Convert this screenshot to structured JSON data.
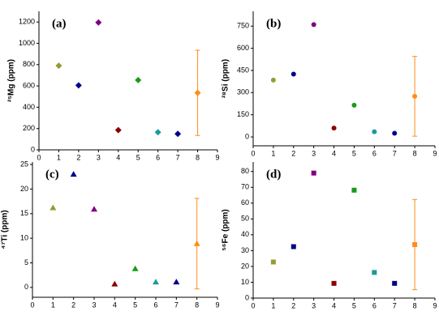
{
  "chart_data": [
    {
      "type": "scatter",
      "title": "(a)",
      "ylabel": "²⁵Mg (ppm)",
      "marker": "diamond",
      "x": [
        1,
        2,
        3,
        4,
        5,
        6,
        7,
        8
      ],
      "values": [
        790,
        605,
        1195,
        185,
        655,
        165,
        150,
        535
      ],
      "errors": [
        null,
        null,
        null,
        null,
        null,
        null,
        null,
        400
      ],
      "colors": [
        "#999933",
        "#00008b",
        "#800080",
        "#8b0000",
        "#1a9a1a",
        "#1a9a9a",
        "#00008b",
        "#ff8c1a"
      ],
      "xlim": [
        0,
        9
      ],
      "xticks": [
        0,
        1,
        2,
        3,
        4,
        5,
        6,
        7,
        8,
        9
      ],
      "ylim": [
        0,
        1300
      ],
      "yticks": [
        0,
        200,
        400,
        600,
        800,
        1000,
        1200
      ]
    },
    {
      "type": "scatter",
      "title": "(b)",
      "ylabel": "²⁸Si (ppm)",
      "marker": "circle",
      "x": [
        1,
        2,
        3,
        4,
        5,
        6,
        7,
        8
      ],
      "values": [
        385,
        425,
        760,
        60,
        215,
        35,
        25,
        275
      ],
      "errors": [
        null,
        null,
        null,
        null,
        null,
        null,
        null,
        270
      ],
      "colors": [
        "#999933",
        "#00008b",
        "#800080",
        "#8b0000",
        "#1a9a1a",
        "#1a9a9a",
        "#00008b",
        "#ff8c1a"
      ],
      "xlim": [
        0,
        9
      ],
      "xticks": [
        0,
        1,
        2,
        3,
        4,
        5,
        6,
        7,
        8,
        9
      ],
      "ylim": [
        -60,
        850
      ],
      "yticks": [
        0,
        150,
        300,
        450,
        600,
        750
      ]
    },
    {
      "type": "scatter",
      "title": "(c)",
      "ylabel": "⁴⁷Ti (ppm)",
      "marker": "triangle",
      "x": [
        1,
        2,
        3,
        4,
        5,
        6,
        7,
        8
      ],
      "values": [
        16.2,
        23,
        15.9,
        0.7,
        3.8,
        1.1,
        1.1,
        8.9
      ],
      "errors": [
        null,
        null,
        null,
        null,
        null,
        null,
        null,
        9.2
      ],
      "colors": [
        "#999933",
        "#00008b",
        "#800080",
        "#8b0000",
        "#1a9a1a",
        "#1a9a9a",
        "#00008b",
        "#ff8c1a"
      ],
      "xlim": [
        0,
        9
      ],
      "xticks": [
        0,
        1,
        2,
        3,
        4,
        5,
        6,
        7,
        8,
        9
      ],
      "ylim": [
        -2,
        25.5
      ],
      "yticks": [
        0,
        5,
        10,
        15,
        20,
        25
      ]
    },
    {
      "type": "scatter",
      "title": "(d)",
      "ylabel": "⁵⁶Fe (ppm)",
      "marker": "square",
      "x": [
        1,
        2,
        3,
        4,
        5,
        6,
        7,
        8
      ],
      "values": [
        22.8,
        32.5,
        79,
        9.3,
        68.2,
        16.2,
        9.3,
        33.8
      ],
      "errors": [
        null,
        null,
        null,
        null,
        null,
        null,
        null,
        28.5
      ],
      "colors": [
        "#999933",
        "#00008b",
        "#800080",
        "#8b0000",
        "#1a9a1a",
        "#1a9a9a",
        "#00008b",
        "#ff8c1a"
      ],
      "xlim": [
        0,
        9
      ],
      "xticks": [
        0,
        1,
        2,
        3,
        4,
        5,
        6,
        7,
        8,
        9
      ],
      "ylim": [
        0,
        86
      ],
      "yticks": [
        0,
        10,
        20,
        30,
        40,
        50,
        60,
        70,
        80
      ]
    }
  ]
}
